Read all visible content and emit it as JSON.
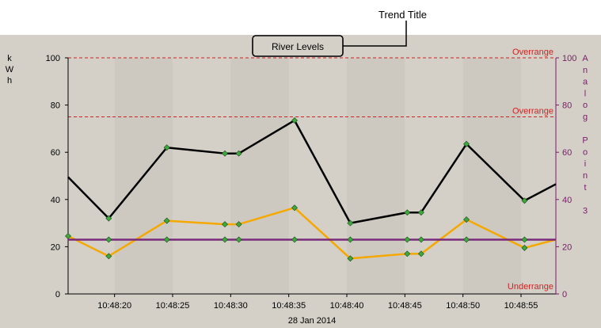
{
  "callout": {
    "label": "Trend Title"
  },
  "trend": {
    "title": "River Levels",
    "date_label": "28 Jan 2014",
    "left_axis_title": [
      "k",
      "W",
      "h"
    ],
    "right_axis_title": [
      "A",
      "n",
      "a",
      "l",
      "o",
      "g",
      "",
      "P",
      "o",
      "i",
      "n",
      "t",
      "",
      "3"
    ],
    "limits": [
      {
        "label": "Overrange",
        "value": 100
      },
      {
        "label": "Overrange",
        "value": 75
      },
      {
        "label": "Underrange",
        "value": 0
      }
    ],
    "colors": {
      "background": "#d4d0c8",
      "band": "#cdc9c1",
      "limit": "#d42020",
      "right_axis": "#7a1a6a",
      "series_black": "#000000",
      "series_orange": "#f5a800",
      "series_purple": "#7a2a7a",
      "marker_fill": "#3ea83e"
    }
  },
  "chart_data": {
    "type": "line",
    "title": "River Levels",
    "xlabel": "28 Jan 2014",
    "ylabel": "kWh",
    "y2label": "Analog Point 3",
    "ylim": [
      0,
      100
    ],
    "y2lim": [
      0,
      100
    ],
    "yticks": [
      0,
      20,
      40,
      60,
      80,
      100
    ],
    "y2ticks": [
      0,
      20,
      40,
      60,
      80,
      100
    ],
    "xlim": [
      16,
      58
    ],
    "x_tick_values": [
      20,
      25,
      30,
      35,
      40,
      45,
      50,
      55
    ],
    "x_tick_labels": [
      "10:48:20",
      "10:48:25",
      "10:48:30",
      "10:48:35",
      "10:48:40",
      "10:48:45",
      "10:48:50",
      "10:48:55"
    ],
    "grid": false,
    "series": [
      {
        "color": "#000000",
        "x": [
          16,
          19.5,
          24.5,
          29.5,
          30.7,
          35.5,
          40.3,
          45.2,
          46.4,
          50.3,
          55.3,
          58
        ],
        "y": [
          49.5,
          32,
          62,
          59.5,
          59.5,
          73.5,
          30,
          34.5,
          34.5,
          63.5,
          39.5,
          46.5
        ],
        "markers": [
          false,
          true,
          true,
          true,
          true,
          true,
          true,
          true,
          true,
          true,
          true,
          false
        ]
      },
      {
        "color": "#f5a800",
        "x": [
          16,
          19.5,
          24.5,
          29.5,
          30.7,
          35.5,
          40.3,
          45.2,
          46.4,
          50.3,
          55.3,
          58
        ],
        "y": [
          24.5,
          16,
          31,
          29.5,
          29.5,
          36.5,
          15,
          17,
          17,
          31.5,
          19.5,
          23
        ],
        "markers": [
          true,
          true,
          true,
          true,
          true,
          true,
          true,
          true,
          true,
          true,
          true,
          false
        ]
      },
      {
        "color": "#7a2a7a",
        "x": [
          16,
          19.5,
          24.5,
          29.5,
          30.7,
          35.5,
          40.3,
          45.2,
          46.4,
          50.3,
          55.3,
          58
        ],
        "y": [
          23,
          23,
          23,
          23,
          23,
          23,
          23,
          23,
          23,
          23,
          23,
          23
        ],
        "markers": [
          false,
          true,
          true,
          true,
          true,
          true,
          true,
          true,
          true,
          true,
          true,
          false
        ]
      }
    ]
  }
}
